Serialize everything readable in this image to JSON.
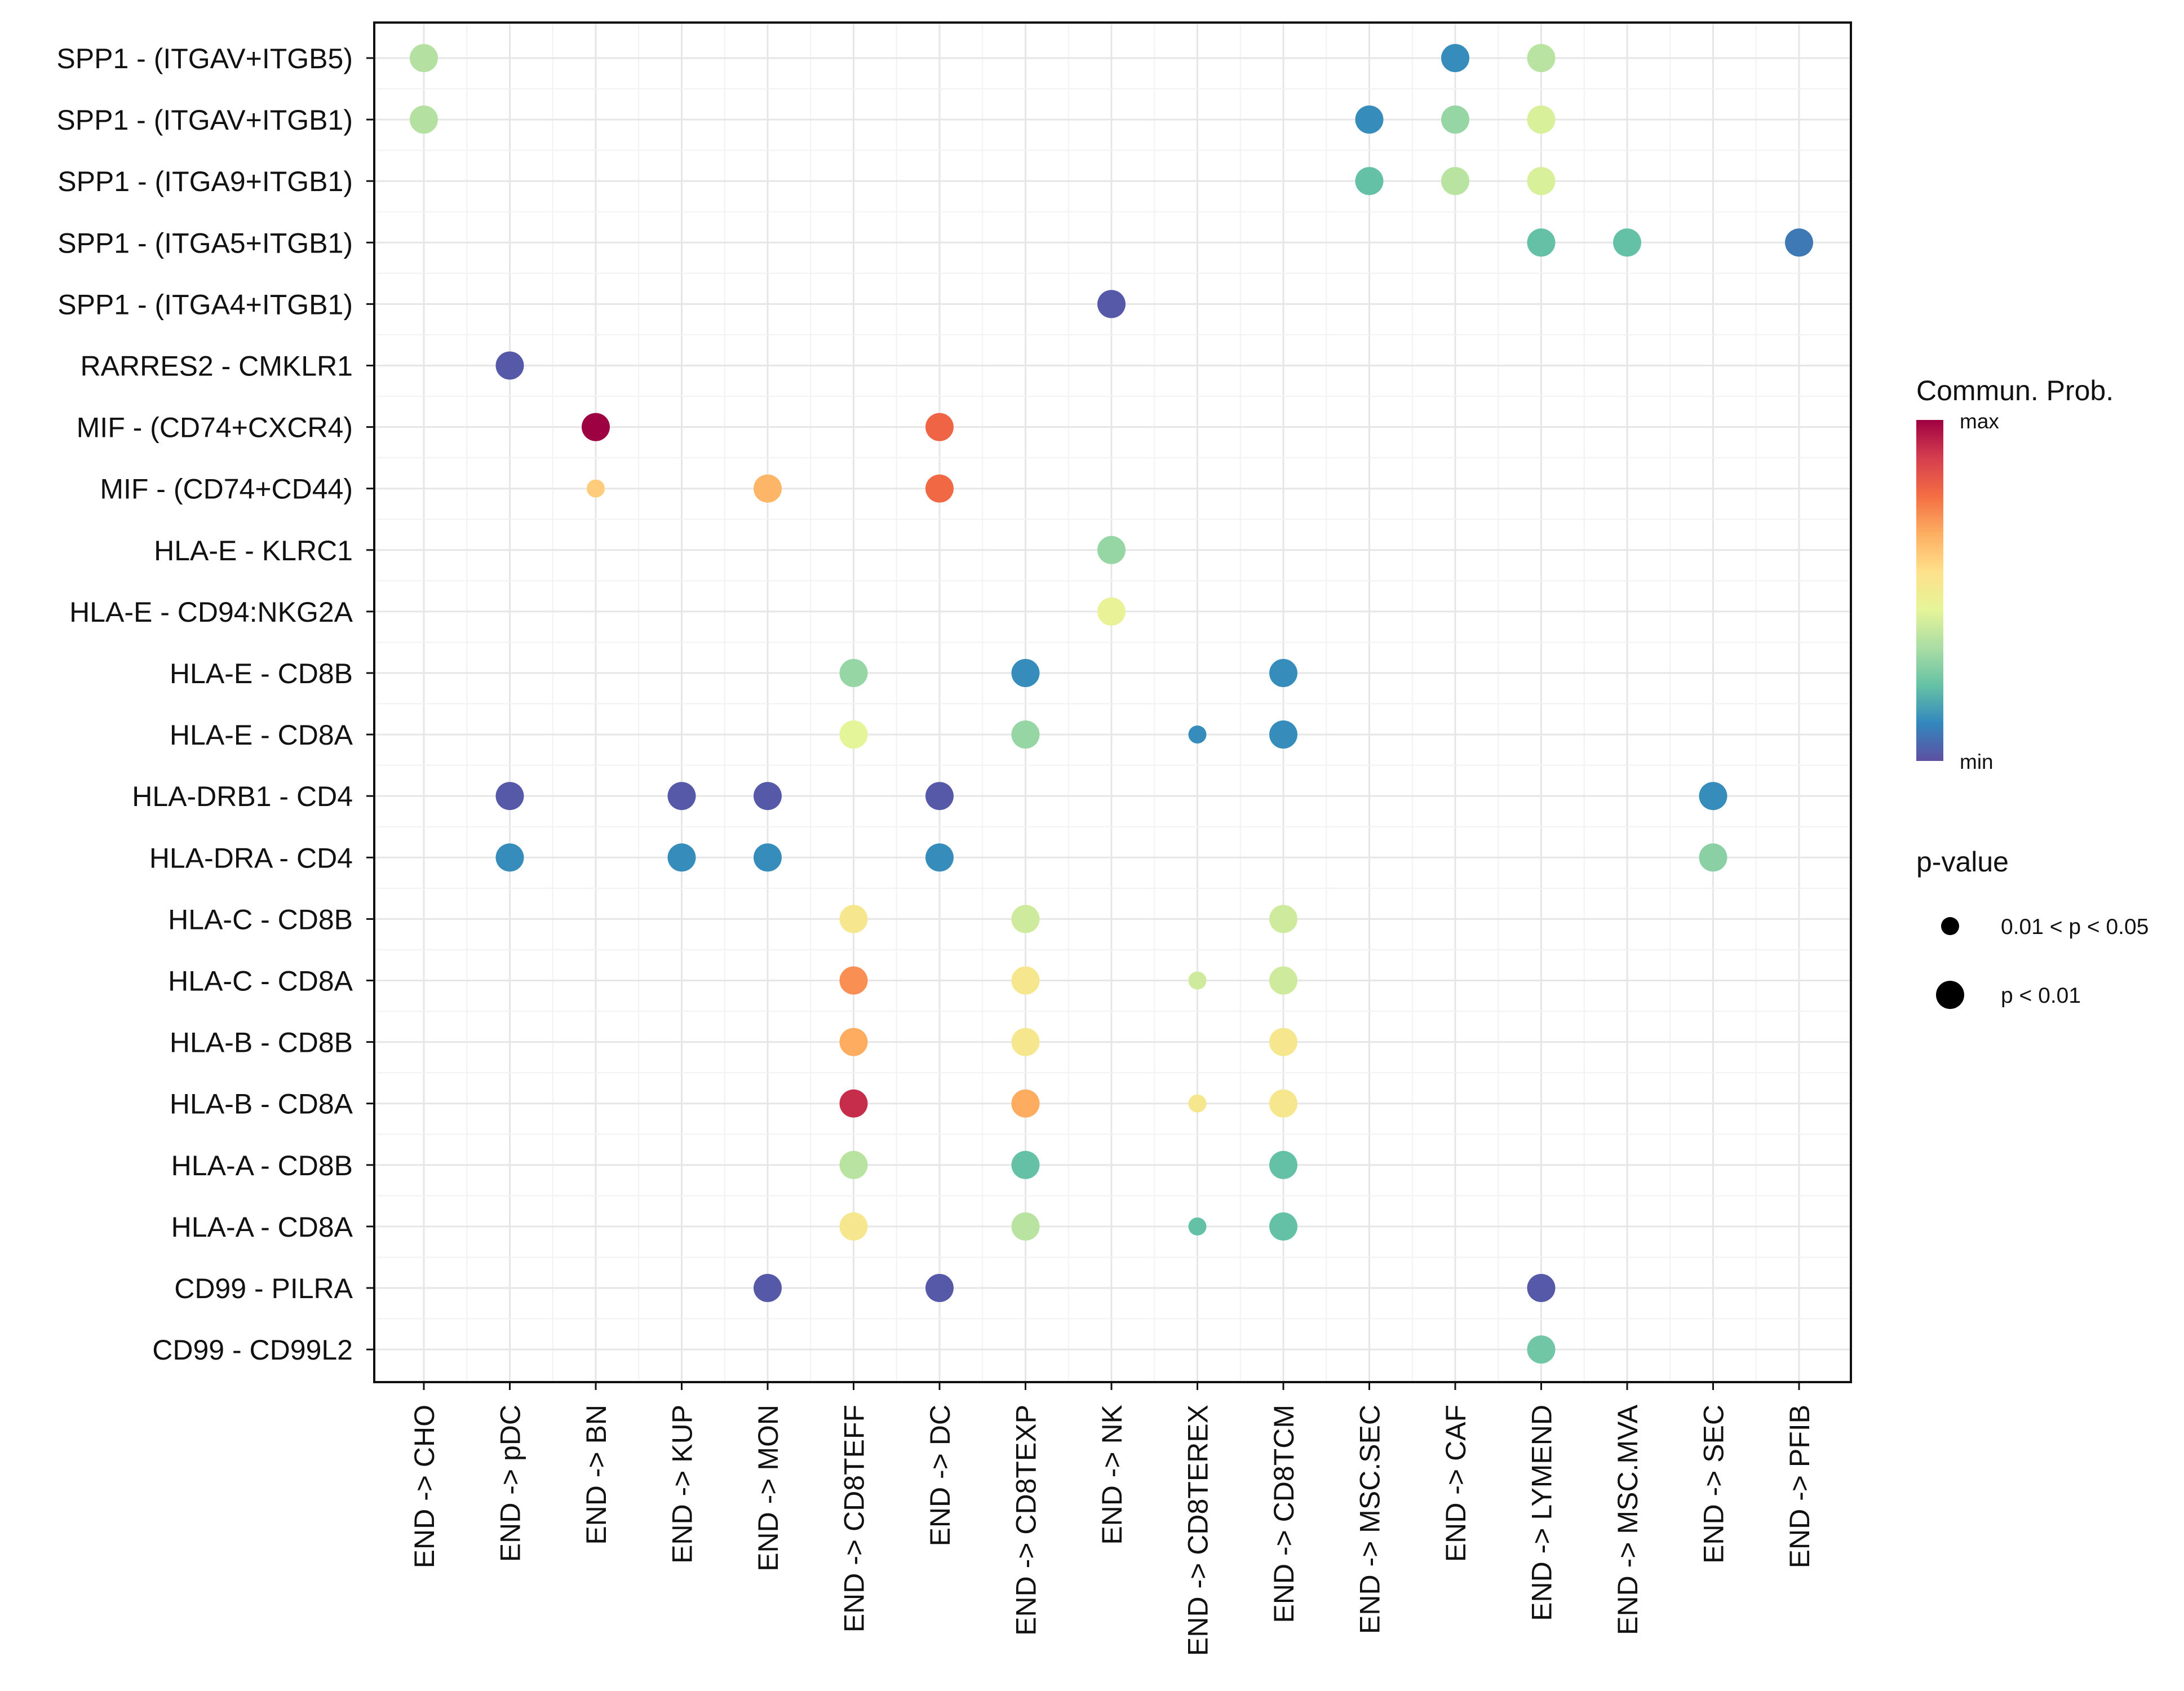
{
  "chart_data": {
    "type": "bubble",
    "xlabel": "",
    "ylabel": "",
    "x_categories": [
      "END -> CHO",
      "END -> pDC",
      "END -> BN",
      "END -> KUP",
      "END -> MON",
      "END -> CD8TEFF",
      "END -> DC",
      "END -> CD8TEXP",
      "END -> NK",
      "END -> CD8TEREX",
      "END -> CD8TCM",
      "END -> MSC.SEC",
      "END -> CAF",
      "END -> LYMEND",
      "END -> MSC.MVA",
      "END -> SEC",
      "END -> PFIB"
    ],
    "y_categories": [
      "SPP1 - (ITGAV+ITGB5)",
      "SPP1 - (ITGAV+ITGB1)",
      "SPP1 - (ITGA9+ITGB1)",
      "SPP1 - (ITGA5+ITGB1)",
      "SPP1 - (ITGA4+ITGB1)",
      "RARRES2 - CMKLR1",
      "MIF - (CD74+CXCR4)",
      "MIF - (CD74+CD44)",
      "HLA-E - KLRC1",
      "HLA-E - CD94:NKG2A",
      "HLA-E - CD8B",
      "HLA-E - CD8A",
      "HLA-DRB1 - CD4",
      "HLA-DRA - CD4",
      "HLA-C - CD8B",
      "HLA-C - CD8A",
      "HLA-B - CD8B",
      "HLA-B - CD8A",
      "HLA-A - CD8B",
      "HLA-A - CD8A",
      "CD99 - PILRA",
      "CD99 - CD99L2"
    ],
    "color_scale": {
      "title": "Commun. Prob.",
      "max_label": "max",
      "min_label": "min",
      "stops": [
        "#5E4FA2",
        "#3288BD",
        "#66C2A5",
        "#ABDDA4",
        "#E6F598",
        "#FEE08B",
        "#FDAE61",
        "#F46D43",
        "#D53E4F",
        "#9E0142"
      ]
    },
    "size_legend": {
      "title": "p-value",
      "items": [
        {
          "label": "0.01 < p < 0.05",
          "pcat": "p_0.01_0.05"
        },
        {
          "label": "p < 0.01",
          "pcat": "p_lt_0.01"
        }
      ]
    },
    "points": [
      {
        "source_target": "END -> CHO",
        "pair": "SPP1 - (ITGAV+ITGB5)",
        "prob": 0.35,
        "pcat": "p_lt_0.01"
      },
      {
        "source_target": "END -> CAF",
        "pair": "SPP1 - (ITGAV+ITGB5)",
        "prob": 0.12,
        "pcat": "p_lt_0.01"
      },
      {
        "source_target": "END -> LYMEND",
        "pair": "SPP1 - (ITGAV+ITGB5)",
        "prob": 0.36,
        "pcat": "p_lt_0.01"
      },
      {
        "source_target": "END -> CHO",
        "pair": "SPP1 - (ITGAV+ITGB1)",
        "prob": 0.35,
        "pcat": "p_lt_0.01"
      },
      {
        "source_target": "END -> MSC.SEC",
        "pair": "SPP1 - (ITGAV+ITGB1)",
        "prob": 0.12,
        "pcat": "p_lt_0.01"
      },
      {
        "source_target": "END -> CAF",
        "pair": "SPP1 - (ITGAV+ITGB1)",
        "prob": 0.3,
        "pcat": "p_lt_0.01"
      },
      {
        "source_target": "END -> LYMEND",
        "pair": "SPP1 - (ITGAV+ITGB1)",
        "prob": 0.42,
        "pcat": "p_lt_0.01"
      },
      {
        "source_target": "END -> MSC.SEC",
        "pair": "SPP1 - (ITGA9+ITGB1)",
        "prob": 0.22,
        "pcat": "p_lt_0.01"
      },
      {
        "source_target": "END -> CAF",
        "pair": "SPP1 - (ITGA9+ITGB1)",
        "prob": 0.36,
        "pcat": "p_lt_0.01"
      },
      {
        "source_target": "END -> LYMEND",
        "pair": "SPP1 - (ITGA9+ITGB1)",
        "prob": 0.42,
        "pcat": "p_lt_0.01"
      },
      {
        "source_target": "END -> LYMEND",
        "pair": "SPP1 - (ITGA5+ITGB1)",
        "prob": 0.22,
        "pcat": "p_lt_0.01"
      },
      {
        "source_target": "END -> MSC.MVA",
        "pair": "SPP1 - (ITGA5+ITGB1)",
        "prob": 0.22,
        "pcat": "p_lt_0.01"
      },
      {
        "source_target": "END -> PFIB",
        "pair": "SPP1 - (ITGA5+ITGB1)",
        "prob": 0.08,
        "pcat": "p_lt_0.01"
      },
      {
        "source_target": "END -> NK",
        "pair": "SPP1 - (ITGA4+ITGB1)",
        "prob": 0.02,
        "pcat": "p_lt_0.01"
      },
      {
        "source_target": "END -> pDC",
        "pair": "RARRES2 - CMKLR1",
        "prob": 0.02,
        "pcat": "p_lt_0.01"
      },
      {
        "source_target": "END -> BN",
        "pair": "MIF - (CD74+CXCR4)",
        "prob": 1.0,
        "pcat": "p_lt_0.01"
      },
      {
        "source_target": "END -> DC",
        "pair": "MIF - (CD74+CXCR4)",
        "prob": 0.8,
        "pcat": "p_lt_0.01"
      },
      {
        "source_target": "END -> BN",
        "pair": "MIF - (CD74+CD44)",
        "prob": 0.6,
        "pcat": "p_0.01_0.05"
      },
      {
        "source_target": "END -> MON",
        "pair": "MIF - (CD74+CD44)",
        "prob": 0.65,
        "pcat": "p_lt_0.01"
      },
      {
        "source_target": "END -> DC",
        "pair": "MIF - (CD74+CD44)",
        "prob": 0.79,
        "pcat": "p_lt_0.01"
      },
      {
        "source_target": "END -> NK",
        "pair": "HLA-E - KLRC1",
        "prob": 0.3,
        "pcat": "p_lt_0.01"
      },
      {
        "source_target": "END -> NK",
        "pair": "HLA-E - CD94:NKG2A",
        "prob": 0.46,
        "pcat": "p_lt_0.01"
      },
      {
        "source_target": "END -> CD8TEFF",
        "pair": "HLA-E - CD8B",
        "prob": 0.3,
        "pcat": "p_lt_0.01"
      },
      {
        "source_target": "END -> CD8TEXP",
        "pair": "HLA-E - CD8B",
        "prob": 0.12,
        "pcat": "p_lt_0.01"
      },
      {
        "source_target": "END -> CD8TCM",
        "pair": "HLA-E - CD8B",
        "prob": 0.12,
        "pcat": "p_lt_0.01"
      },
      {
        "source_target": "END -> CD8TEFF",
        "pair": "HLA-E - CD8A",
        "prob": 0.44,
        "pcat": "p_lt_0.01"
      },
      {
        "source_target": "END -> CD8TEXP",
        "pair": "HLA-E - CD8A",
        "prob": 0.3,
        "pcat": "p_lt_0.01"
      },
      {
        "source_target": "END -> CD8TEREX",
        "pair": "HLA-E - CD8A",
        "prob": 0.12,
        "pcat": "p_0.01_0.05"
      },
      {
        "source_target": "END -> CD8TCM",
        "pair": "HLA-E - CD8A",
        "prob": 0.12,
        "pcat": "p_lt_0.01"
      },
      {
        "source_target": "END -> pDC",
        "pair": "HLA-DRB1 - CD4",
        "prob": 0.02,
        "pcat": "p_lt_0.01"
      },
      {
        "source_target": "END -> KUP",
        "pair": "HLA-DRB1 - CD4",
        "prob": 0.02,
        "pcat": "p_lt_0.01"
      },
      {
        "source_target": "END -> MON",
        "pair": "HLA-DRB1 - CD4",
        "prob": 0.02,
        "pcat": "p_lt_0.01"
      },
      {
        "source_target": "END -> DC",
        "pair": "HLA-DRB1 - CD4",
        "prob": 0.02,
        "pcat": "p_lt_0.01"
      },
      {
        "source_target": "END -> SEC",
        "pair": "HLA-DRB1 - CD4",
        "prob": 0.12,
        "pcat": "p_lt_0.01"
      },
      {
        "source_target": "END -> pDC",
        "pair": "HLA-DRA - CD4",
        "prob": 0.12,
        "pcat": "p_lt_0.01"
      },
      {
        "source_target": "END -> KUP",
        "pair": "HLA-DRA - CD4",
        "prob": 0.12,
        "pcat": "p_lt_0.01"
      },
      {
        "source_target": "END -> MON",
        "pair": "HLA-DRA - CD4",
        "prob": 0.12,
        "pcat": "p_lt_0.01"
      },
      {
        "source_target": "END -> DC",
        "pair": "HLA-DRA - CD4",
        "prob": 0.12,
        "pcat": "p_lt_0.01"
      },
      {
        "source_target": "END -> SEC",
        "pair": "HLA-DRA - CD4",
        "prob": 0.28,
        "pcat": "p_lt_0.01"
      },
      {
        "source_target": "END -> CD8TEFF",
        "pair": "HLA-C - CD8B",
        "prob": 0.52,
        "pcat": "p_lt_0.01"
      },
      {
        "source_target": "END -> CD8TEXP",
        "pair": "HLA-C - CD8B",
        "prob": 0.4,
        "pcat": "p_lt_0.01"
      },
      {
        "source_target": "END -> CD8TCM",
        "pair": "HLA-C - CD8B",
        "prob": 0.4,
        "pcat": "p_lt_0.01"
      },
      {
        "source_target": "END -> CD8TEFF",
        "pair": "HLA-C - CD8A",
        "prob": 0.72,
        "pcat": "p_lt_0.01"
      },
      {
        "source_target": "END -> CD8TEXP",
        "pair": "HLA-C - CD8A",
        "prob": 0.52,
        "pcat": "p_lt_0.01"
      },
      {
        "source_target": "END -> CD8TEREX",
        "pair": "HLA-C - CD8A",
        "prob": 0.4,
        "pcat": "p_0.01_0.05"
      },
      {
        "source_target": "END -> CD8TCM",
        "pair": "HLA-C - CD8A",
        "prob": 0.4,
        "pcat": "p_lt_0.01"
      },
      {
        "source_target": "END -> CD8TEFF",
        "pair": "HLA-B - CD8B",
        "prob": 0.67,
        "pcat": "p_lt_0.01"
      },
      {
        "source_target": "END -> CD8TEXP",
        "pair": "HLA-B - CD8B",
        "prob": 0.52,
        "pcat": "p_lt_0.01"
      },
      {
        "source_target": "END -> CD8TCM",
        "pair": "HLA-B - CD8B",
        "prob": 0.52,
        "pcat": "p_lt_0.01"
      },
      {
        "source_target": "END -> CD8TEFF",
        "pair": "HLA-B - CD8A",
        "prob": 0.92,
        "pcat": "p_lt_0.01"
      },
      {
        "source_target": "END -> CD8TEXP",
        "pair": "HLA-B - CD8A",
        "prob": 0.67,
        "pcat": "p_lt_0.01"
      },
      {
        "source_target": "END -> CD8TEREX",
        "pair": "HLA-B - CD8A",
        "prob": 0.52,
        "pcat": "p_0.01_0.05"
      },
      {
        "source_target": "END -> CD8TCM",
        "pair": "HLA-B - CD8A",
        "prob": 0.52,
        "pcat": "p_lt_0.01"
      },
      {
        "source_target": "END -> CD8TEFF",
        "pair": "HLA-A - CD8B",
        "prob": 0.36,
        "pcat": "p_lt_0.01"
      },
      {
        "source_target": "END -> CD8TEXP",
        "pair": "HLA-A - CD8B",
        "prob": 0.22,
        "pcat": "p_lt_0.01"
      },
      {
        "source_target": "END -> CD8TCM",
        "pair": "HLA-A - CD8B",
        "prob": 0.22,
        "pcat": "p_lt_0.01"
      },
      {
        "source_target": "END -> CD8TEFF",
        "pair": "HLA-A - CD8A",
        "prob": 0.52,
        "pcat": "p_lt_0.01"
      },
      {
        "source_target": "END -> CD8TEXP",
        "pair": "HLA-A - CD8A",
        "prob": 0.36,
        "pcat": "p_lt_0.01"
      },
      {
        "source_target": "END -> CD8TEREX",
        "pair": "HLA-A - CD8A",
        "prob": 0.22,
        "pcat": "p_0.01_0.05"
      },
      {
        "source_target": "END -> CD8TCM",
        "pair": "HLA-A - CD8A",
        "prob": 0.22,
        "pcat": "p_lt_0.01"
      },
      {
        "source_target": "END -> MON",
        "pair": "CD99 - PILRA",
        "prob": 0.02,
        "pcat": "p_lt_0.01"
      },
      {
        "source_target": "END -> DC",
        "pair": "CD99 - PILRA",
        "prob": 0.02,
        "pcat": "p_lt_0.01"
      },
      {
        "source_target": "END -> LYMEND",
        "pair": "CD99 - PILRA",
        "prob": 0.02,
        "pcat": "p_lt_0.01"
      },
      {
        "source_target": "END -> LYMEND",
        "pair": "CD99 - CD99L2",
        "prob": 0.24,
        "pcat": "p_lt_0.01"
      }
    ]
  }
}
